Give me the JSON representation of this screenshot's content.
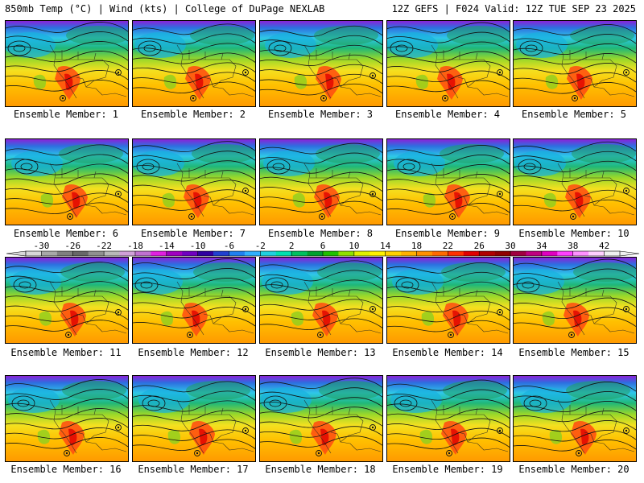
{
  "header": {
    "left": "850mb Temp (°C) | Wind (kts) | College of DuPage NEXLAB",
    "right": "12Z GEFS | F024 Valid: 12Z TUE SEP 23 2025"
  },
  "members": [
    {
      "label": "Ensemble Member: 1"
    },
    {
      "label": "Ensemble Member: 2"
    },
    {
      "label": "Ensemble Member: 3"
    },
    {
      "label": "Ensemble Member: 4"
    },
    {
      "label": "Ensemble Member: 5"
    },
    {
      "label": "Ensemble Member: 6"
    },
    {
      "label": "Ensemble Member: 7"
    },
    {
      "label": "Ensemble Member: 8"
    },
    {
      "label": "Ensemble Member: 9"
    },
    {
      "label": "Ensemble Member: 10"
    },
    {
      "label": "Ensemble Member: 11"
    },
    {
      "label": "Ensemble Member: 12"
    },
    {
      "label": "Ensemble Member: 13"
    },
    {
      "label": "Ensemble Member: 14"
    },
    {
      "label": "Ensemble Member: 15"
    },
    {
      "label": "Ensemble Member: 16"
    },
    {
      "label": "Ensemble Member: 17"
    },
    {
      "label": "Ensemble Member: 18"
    },
    {
      "label": "Ensemble Member: 19"
    },
    {
      "label": "Ensemble Member: 20"
    }
  ],
  "colorbar": {
    "ticks": [
      "-30",
      "-26",
      "-22",
      "-18",
      "-14",
      "-10",
      "-6",
      "-2",
      "2",
      "6",
      "10",
      "14",
      "18",
      "22",
      "26",
      "30",
      "34",
      "38",
      "42"
    ],
    "colors": [
      "#d8d8d8",
      "#a8a8a8",
      "#808080",
      "#686868",
      "#909090",
      "#b8b8b8",
      "#d0a0d8",
      "#c070d0",
      "#e020e0",
      "#a000c0",
      "#7000c0",
      "#3000a0",
      "#2040d0",
      "#2080f0",
      "#30b0ff",
      "#20d0e0",
      "#00e0b0",
      "#00c060",
      "#00a030",
      "#20c000",
      "#90e000",
      "#e0f000",
      "#fff000",
      "#ffd000",
      "#ffb000",
      "#ff9000",
      "#ff6a00",
      "#ff3000",
      "#e00000",
      "#b00000",
      "#900000",
      "#a00040",
      "#c00080",
      "#e000c0",
      "#ff40ff",
      "#ff90ff",
      "#ffd0ff",
      "#f0f0f0"
    ]
  }
}
